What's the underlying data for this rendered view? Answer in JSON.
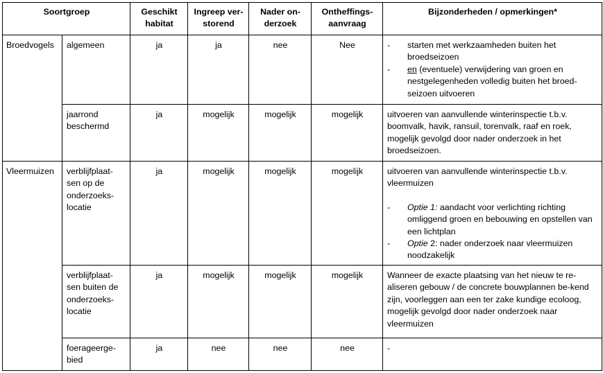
{
  "headers": {
    "soortgroep": "Soortgroep",
    "geschikt": "Geschikt habitat",
    "ingreep": "Ingreep ver-storend",
    "nader": "Nader on-derzoek",
    "ontheffing": "Ontheffings-aanvraag",
    "opmerkingen": "Bijzonderheden / opmerkingen*"
  },
  "groups": {
    "broedvogels": "Broedvogels",
    "vleermuizen": "Vleermuizen"
  },
  "rows": [
    {
      "sub": "algemeen",
      "geschikt": "ja",
      "ingreep": "ja",
      "nader": "nee",
      "ontheffing": "Nee",
      "notes": {
        "item1": "starten met werkzaamheden buiten het broedseizoen",
        "item2_underlined": "en",
        "item2_rest": " (eventuele) verwijdering van groen en nestgelegenheden volledig buiten het broed-seizoen uitvoeren"
      }
    },
    {
      "sub": "jaarrond beschermd",
      "geschikt": "ja",
      "ingreep": "mogelijk",
      "nader": "mogelijk",
      "ontheffing": "mogelijk",
      "notes": "uitvoeren van aanvullende winterinspectie t.b.v. boomvalk, havik, ransuil, torenvalk, raaf en roek, mogelijk gevolgd door nader onderzoek in het broedseizoen."
    },
    {
      "sub": "verblijfplaat-sen op de onderzoeks-locatie",
      "geschikt": "ja",
      "ingreep": "mogelijk",
      "nader": "mogelijk",
      "ontheffing": "mogelijk",
      "notes": {
        "intro": "uitvoeren van aanvullende winterinspectie t.b.v. vleermuizen",
        "opt1_label": "Optie 1:",
        "opt1_text": " aandacht voor verlichting richting omliggend groen en bebouwing en opstellen van een lichtplan",
        "opt2_label": "Optie",
        "opt2_text": " 2: nader onderzoek naar vleermuizen noodzakelijk"
      }
    },
    {
      "sub": "verblijfplaat-sen buiten de onderzoeks-locatie",
      "geschikt": "ja",
      "ingreep": "mogelijk",
      "nader": "mogelijk",
      "ontheffing": "mogelijk",
      "notes": "Wanneer de exacte plaatsing van het nieuw te re-aliseren gebouw / de concrete bouwplannen be-kend zijn, voorleggen aan een ter zake kundige ecoloog, mogelijk gevolgd door nader onderzoek naar vleermuizen"
    },
    {
      "sub": "foerageerge-bied",
      "geschikt": "ja",
      "ingreep": "nee",
      "nader": "nee",
      "ontheffing": "nee",
      "notes": "-"
    }
  ]
}
